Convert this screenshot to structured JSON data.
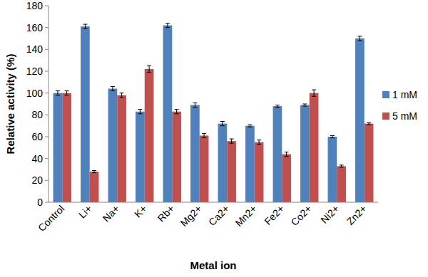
{
  "chart_data": {
    "type": "bar",
    "x_label": "Metal ion",
    "y_label": "Relative activity (%)",
    "categories": [
      "Control",
      "Li+",
      "Na+",
      "K+",
      "Rb+",
      "Mg2+",
      "Ca2+",
      "Mn2+",
      "Fe2+",
      "Co2+",
      "Ni2+",
      "Zn2+"
    ],
    "series": [
      {
        "name": "1 mM",
        "color": "#4f81bd",
        "values": [
          100,
          161,
          104,
          83,
          162,
          89,
          72,
          70,
          88,
          89,
          60,
          150
        ],
        "errors": [
          2,
          2,
          2,
          2,
          2,
          2,
          2,
          1,
          1,
          1,
          1,
          2
        ]
      },
      {
        "name": "5 mM",
        "color": "#c0504d",
        "values": [
          100,
          28,
          98,
          122,
          83,
          61,
          56,
          55,
          44,
          100,
          33,
          72
        ],
        "errors": [
          2,
          1,
          2,
          3,
          2,
          2,
          2,
          2,
          2,
          3,
          1,
          1
        ]
      }
    ],
    "ylim": [
      0,
      180
    ],
    "yticks": [
      0,
      20,
      40,
      60,
      80,
      100,
      120,
      140,
      160,
      180
    ],
    "grid": false,
    "legend": "right"
  }
}
